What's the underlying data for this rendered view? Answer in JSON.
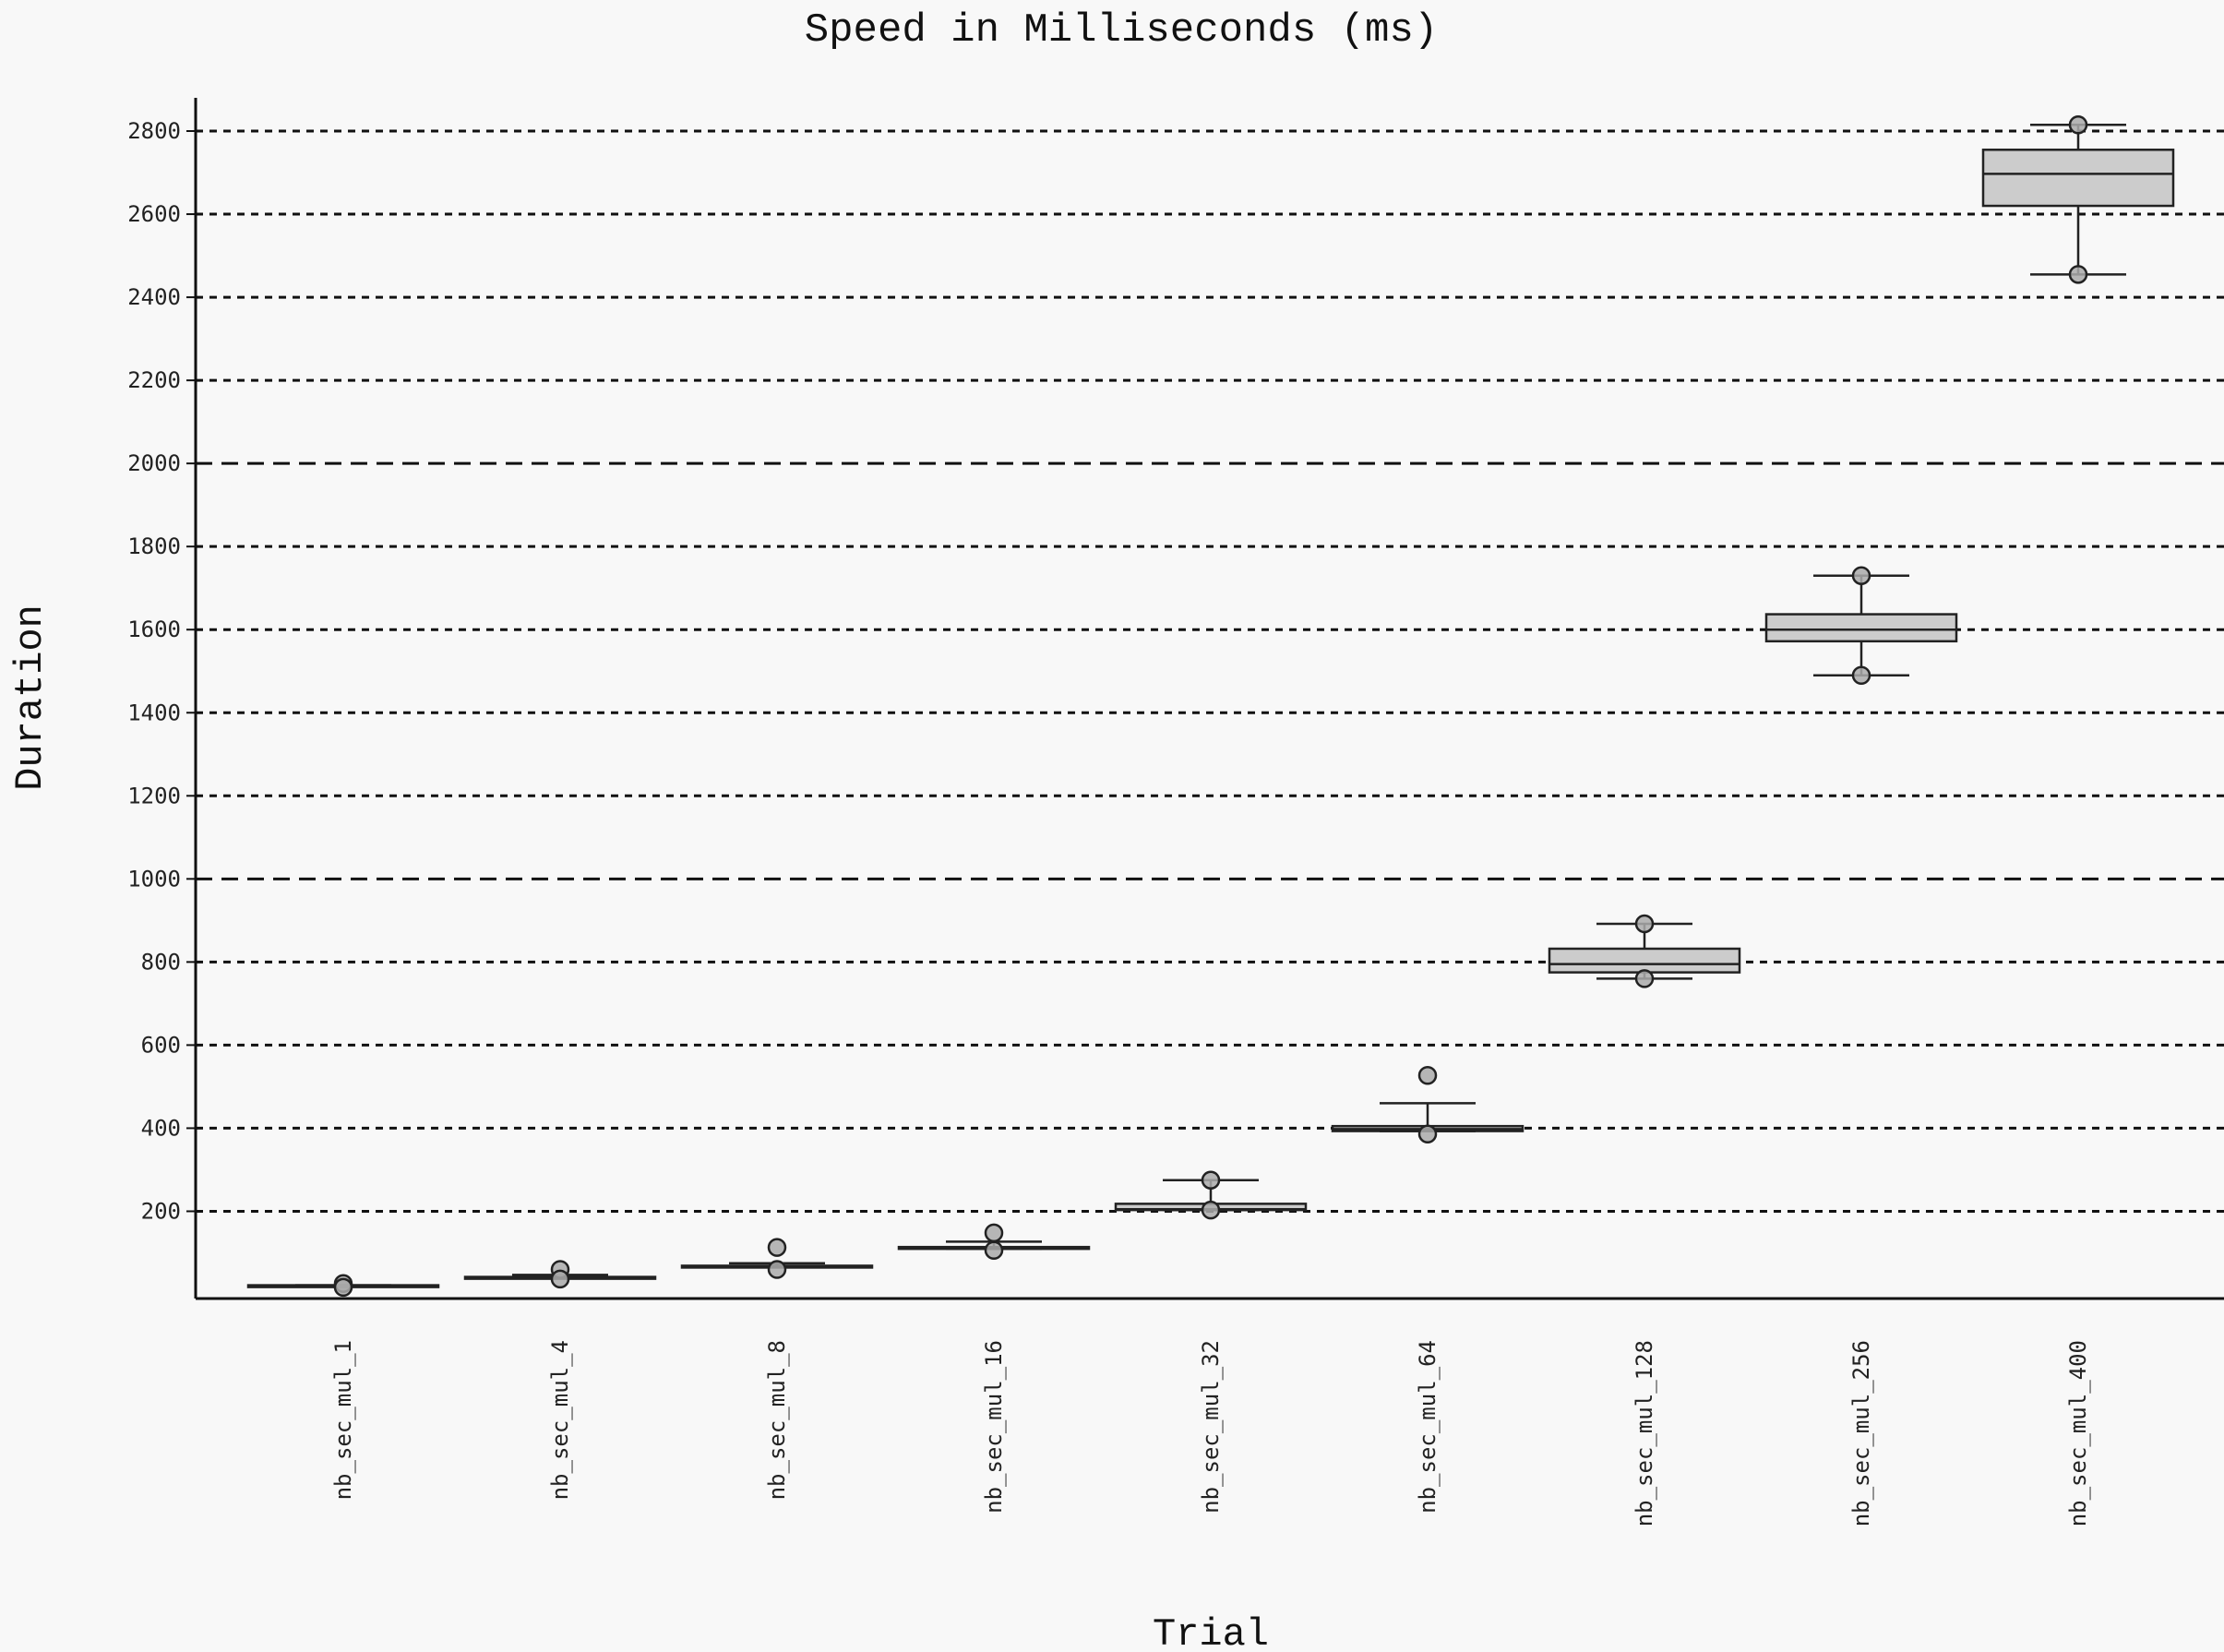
{
  "chart_data": {
    "type": "box",
    "title": "Speed in Milliseconds (ms)",
    "xlabel": "Trial",
    "ylabel": "Duration",
    "ylim": [
      -10,
      2880
    ],
    "yticks": [
      200,
      400,
      600,
      800,
      1000,
      1200,
      1400,
      1600,
      1800,
      2000,
      2200,
      2400,
      2600,
      2800
    ],
    "grid": "horizontal dashed",
    "box_color": "#cccccc",
    "line_color": "#222222",
    "categories": [
      "nb_sec_mul_1",
      "nb_sec_mul_4",
      "nb_sec_mul_8",
      "nb_sec_mul_16",
      "nb_sec_mul_32",
      "nb_sec_mul_64",
      "nb_sec_mul_128",
      "nb_sec_mul_256",
      "nb_sec_mul_400"
    ],
    "boxes": [
      {
        "category": "nb_sec_mul_1",
        "whisker_low": 21,
        "q1": 21,
        "median": 21,
        "q3": 22,
        "whisker_high": 22,
        "points": [
          26,
          17
        ]
      },
      {
        "category": "nb_sec_mul_4",
        "whisker_low": 40,
        "q1": 40,
        "median": 41,
        "q3": 42,
        "whisker_high": 47,
        "points": [
          60,
          37
        ]
      },
      {
        "category": "nb_sec_mul_8",
        "whisker_low": 65,
        "q1": 65,
        "median": 66,
        "q3": 69,
        "whisker_high": 75,
        "points": [
          113,
          60
        ]
      },
      {
        "category": "nb_sec_mul_16",
        "whisker_low": 110,
        "q1": 110,
        "median": 112,
        "q3": 114,
        "whisker_high": 127,
        "points": [
          148,
          106
        ]
      },
      {
        "category": "nb_sec_mul_32",
        "whisker_low": 203,
        "q1": 203,
        "median": 205,
        "q3": 218,
        "whisker_high": 275,
        "points": [
          275,
          203
        ]
      },
      {
        "category": "nb_sec_mul_64",
        "whisker_low": 393,
        "q1": 393,
        "median": 398,
        "q3": 405,
        "whisker_high": 460,
        "points": [
          527,
          386
        ]
      },
      {
        "category": "nb_sec_mul_128",
        "whisker_low": 760,
        "q1": 775,
        "median": 795,
        "q3": 832,
        "whisker_high": 892,
        "points": [
          892,
          760
        ]
      },
      {
        "category": "nb_sec_mul_256",
        "whisker_low": 1490,
        "q1": 1572,
        "median": 1600,
        "q3": 1637,
        "whisker_high": 1730,
        "points": [
          1730,
          1490
        ]
      },
      {
        "category": "nb_sec_mul_400",
        "whisker_low": 2455,
        "q1": 2620,
        "median": 2697,
        "q3": 2755,
        "whisker_high": 2815,
        "points": [
          2815,
          2455
        ]
      }
    ]
  }
}
